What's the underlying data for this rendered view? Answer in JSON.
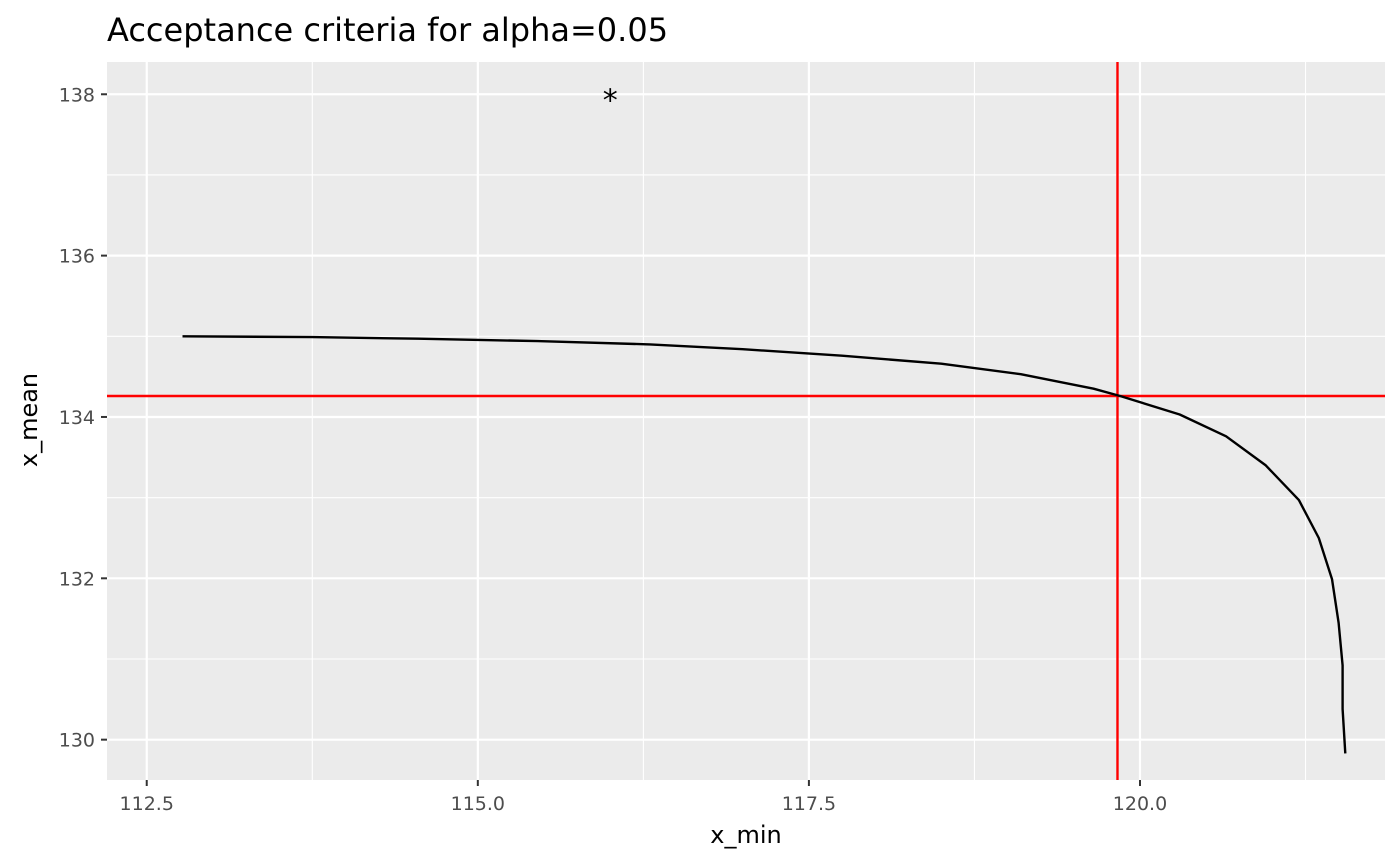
{
  "chart_data": {
    "type": "line",
    "title": "Acceptance criteria for alpha=0.05",
    "xlabel": "x_min",
    "ylabel": "x_mean",
    "xlim": [
      112.2,
      121.85
    ],
    "ylim": [
      129.5,
      138.4
    ],
    "x_ticks": [
      112.5,
      115.0,
      117.5,
      120.0
    ],
    "x_tick_labels": [
      "112.5",
      "115.0",
      "117.5",
      "120.0"
    ],
    "y_ticks": [
      130,
      132,
      134,
      136,
      138
    ],
    "y_tick_labels": [
      "130",
      "132",
      "134",
      "136",
      "138"
    ],
    "grid": true,
    "background": "#ebebeb",
    "series": [
      {
        "color": "#000000",
        "points": [
          [
            112.77,
            135.0
          ],
          [
            113.75,
            134.99
          ],
          [
            114.55,
            134.97
          ],
          [
            115.45,
            134.94
          ],
          [
            116.3,
            134.9
          ],
          [
            117.0,
            134.84
          ],
          [
            117.75,
            134.76
          ],
          [
            118.5,
            134.66
          ],
          [
            119.1,
            134.53
          ],
          [
            119.65,
            134.35
          ],
          [
            119.85,
            134.26
          ],
          [
            120.3,
            134.03
          ],
          [
            120.65,
            133.76
          ],
          [
            120.95,
            133.4
          ],
          [
            121.2,
            132.97
          ],
          [
            121.35,
            132.5
          ],
          [
            121.45,
            131.99
          ],
          [
            121.5,
            131.45
          ],
          [
            121.53,
            130.92
          ],
          [
            121.53,
            130.38
          ],
          [
            121.55,
            129.83
          ]
        ]
      }
    ],
    "reference_lines": {
      "color": "#ff0000",
      "vertical_x": 119.83,
      "horizontal_y": 134.26
    },
    "annotation": {
      "text": "*",
      "x": 116.0,
      "y": 138.0
    }
  }
}
